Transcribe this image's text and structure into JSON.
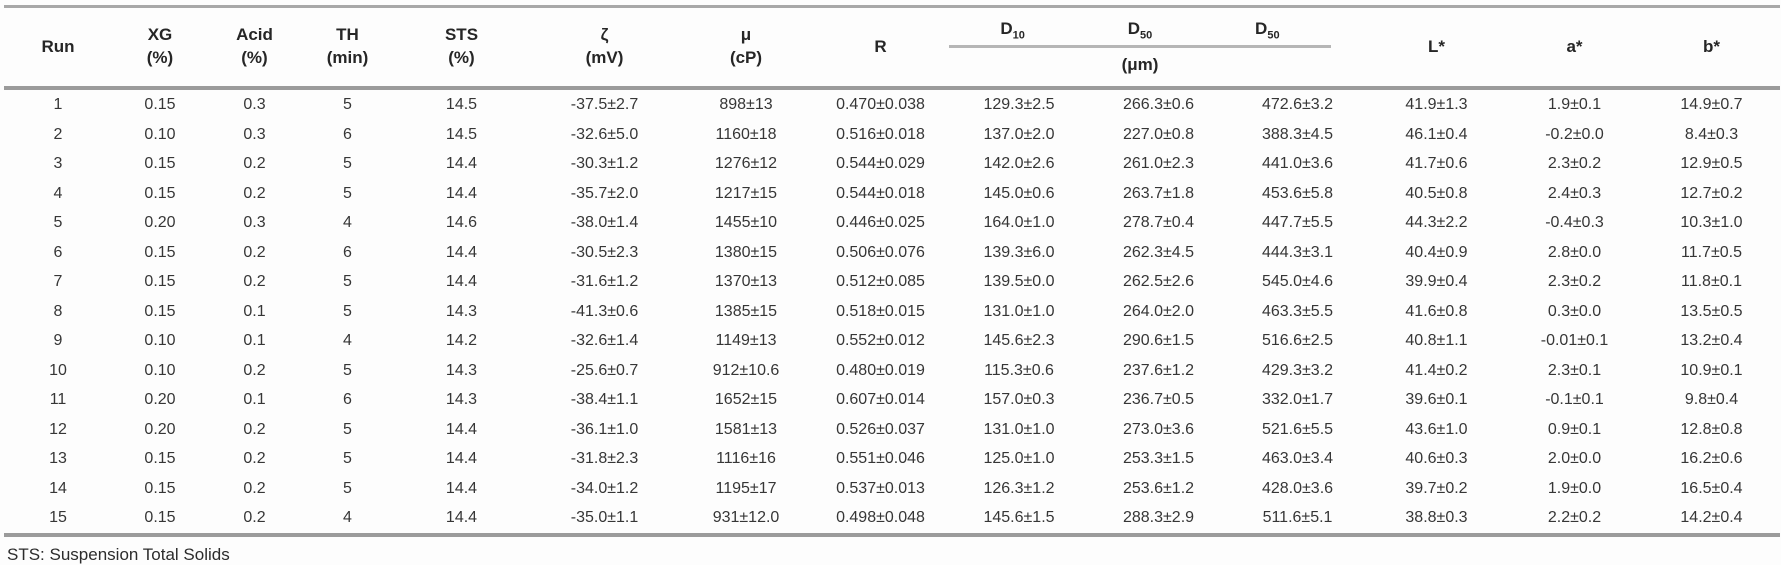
{
  "table": {
    "simple_columns_left": [
      {
        "label": "Run",
        "unit": ""
      },
      {
        "label": "XG",
        "unit": "(%)"
      },
      {
        "label": "Acid",
        "unit": "(%)"
      },
      {
        "label": "TH",
        "unit": "(min)"
      },
      {
        "label": "STS",
        "unit": "(%)"
      },
      {
        "label": "ζ",
        "unit": "(mV)"
      },
      {
        "label": "μ",
        "unit": "(cP)"
      },
      {
        "label": "R",
        "unit": ""
      }
    ],
    "d_group": {
      "labels": [
        {
          "base": "D",
          "sub": "10"
        },
        {
          "base": "D",
          "sub": "50"
        },
        {
          "base": "D",
          "sub": "50"
        }
      ],
      "unit": "(μm)"
    },
    "simple_columns_right": [
      {
        "label": "L*",
        "unit": ""
      },
      {
        "label": "a*",
        "unit": ""
      },
      {
        "label": "b*",
        "unit": ""
      }
    ],
    "rows": [
      [
        "1",
        "0.15",
        "0.3",
        "5",
        "14.5",
        "-37.5±2.7",
        "898±13",
        "0.470±0.038",
        "129.3±2.5",
        "266.3±0.6",
        "472.6±3.2",
        "41.9±1.3",
        "1.9±0.1",
        "14.9±0.7"
      ],
      [
        "2",
        "0.10",
        "0.3",
        "6",
        "14.5",
        "-32.6±5.0",
        "1160±18",
        "0.516±0.018",
        "137.0±2.0",
        "227.0±0.8",
        "388.3±4.5",
        "46.1±0.4",
        "-0.2±0.0",
        "8.4±0.3"
      ],
      [
        "3",
        "0.15",
        "0.2",
        "5",
        "14.4",
        "-30.3±1.2",
        "1276±12",
        "0.544±0.029",
        "142.0±2.6",
        "261.0±2.3",
        "441.0±3.6",
        "41.7±0.6",
        "2.3±0.2",
        "12.9±0.5"
      ],
      [
        "4",
        "0.15",
        "0.2",
        "5",
        "14.4",
        "-35.7±2.0",
        "1217±15",
        "0.544±0.018",
        "145.0±0.6",
        "263.7±1.8",
        "453.6±5.8",
        "40.5±0.8",
        "2.4±0.3",
        "12.7±0.2"
      ],
      [
        "5",
        "0.20",
        "0.3",
        "4",
        "14.6",
        "-38.0±1.4",
        "1455±10",
        "0.446±0.025",
        "164.0±1.0",
        "278.7±0.4",
        "447.7±5.5",
        "44.3±2.2",
        "-0.4±0.3",
        "10.3±1.0"
      ],
      [
        "6",
        "0.15",
        "0.2",
        "6",
        "14.4",
        "-30.5±2.3",
        "1380±15",
        "0.506±0.076",
        "139.3±6.0",
        "262.3±4.5",
        "444.3±3.1",
        "40.4±0.9",
        "2.8±0.0",
        "11.7±0.5"
      ],
      [
        "7",
        "0.15",
        "0.2",
        "5",
        "14.4",
        "-31.6±1.2",
        "1370±13",
        "0.512±0.085",
        "139.5±0.0",
        "262.5±2.6",
        "545.0±4.6",
        "39.9±0.4",
        "2.3±0.2",
        "11.8±0.1"
      ],
      [
        "8",
        "0.15",
        "0.1",
        "5",
        "14.3",
        "-41.3±0.6",
        "1385±15",
        "0.518±0.015",
        "131.0±1.0",
        "264.0±2.0",
        "463.3±5.5",
        "41.6±0.8",
        "0.3±0.0",
        "13.5±0.5"
      ],
      [
        "9",
        "0.10",
        "0.1",
        "4",
        "14.2",
        "-32.6±1.4",
        "1149±13",
        "0.552±0.012",
        "145.6±2.3",
        "290.6±1.5",
        "516.6±2.5",
        "40.8±1.1",
        "-0.01±0.1",
        "13.2±0.4"
      ],
      [
        "10",
        "0.10",
        "0.2",
        "5",
        "14.3",
        "-25.6±0.7",
        "912±10.6",
        "0.480±0.019",
        "115.3±0.6",
        "237.6±1.2",
        "429.3±3.2",
        "41.4±0.2",
        "2.3±0.1",
        "10.9±0.1"
      ],
      [
        "11",
        "0.20",
        "0.1",
        "6",
        "14.3",
        "-38.4±1.1",
        "1652±15",
        "0.607±0.014",
        "157.0±0.3",
        "236.7±0.5",
        "332.0±1.7",
        "39.6±0.1",
        "-0.1±0.1",
        "9.8±0.4"
      ],
      [
        "12",
        "0.20",
        "0.2",
        "5",
        "14.4",
        "-36.1±1.0",
        "1581±13",
        "0.526±0.037",
        "131.0±1.0",
        "273.0±3.6",
        "521.6±5.5",
        "43.6±1.0",
        "0.9±0.1",
        "12.8±0.8"
      ],
      [
        "13",
        "0.15",
        "0.2",
        "5",
        "14.4",
        "-31.8±2.3",
        "1116±16",
        "0.551±0.046",
        "125.0±1.0",
        "253.3±1.5",
        "463.0±3.4",
        "40.6±0.3",
        "2.0±0.0",
        "16.2±0.6"
      ],
      [
        "14",
        "0.15",
        "0.2",
        "5",
        "14.4",
        "-34.0±1.2",
        "1195±17",
        "0.537±0.013",
        "126.3±1.2",
        "253.6±1.2",
        "428.0±3.6",
        "39.7±0.2",
        "1.9±0.0",
        "16.5±0.4"
      ],
      [
        "15",
        "0.15",
        "0.2",
        "4",
        "14.4",
        "-35.0±1.1",
        "931±12.0",
        "0.498±0.048",
        "145.6±1.5",
        "288.3±2.9",
        "511.6±5.1",
        "38.8±0.3",
        "2.2±0.2",
        "14.2±0.4"
      ]
    ],
    "footnote": "STS: Suspension Total Solids"
  },
  "colors": {
    "rule_gray": "#9b9b9b",
    "light_rule_gray": "#b6b6b6",
    "text_dark": "#262626"
  }
}
